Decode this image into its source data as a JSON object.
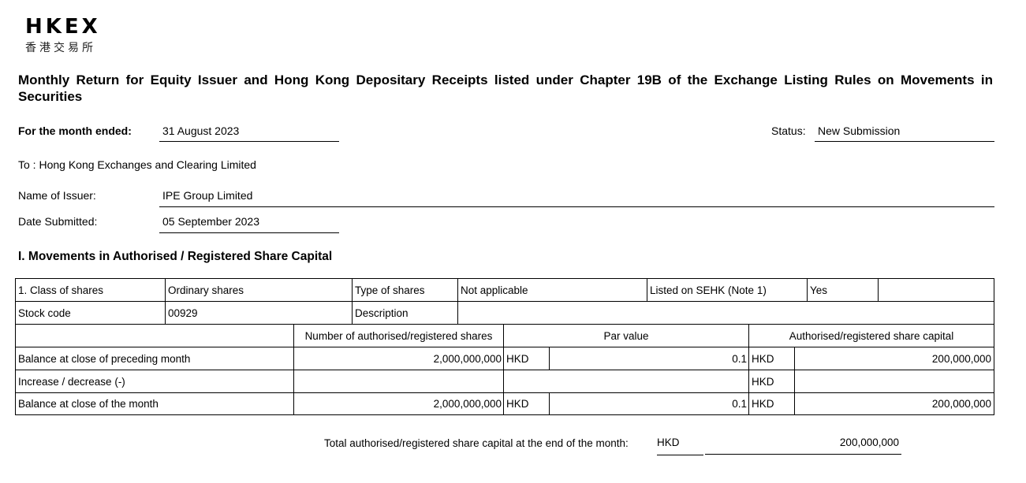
{
  "logo": {
    "en": "HKEX",
    "zh": "香港交易所"
  },
  "title": "Monthly Return for Equity Issuer and Hong Kong Depositary Receipts listed under Chapter 19B of the Exchange Listing Rules on Movements in Securities",
  "header": {
    "month_label": "For the month ended:",
    "month_value": "31 August 2023",
    "status_label": "Status:",
    "status_value": "New Submission",
    "to": "To : Hong Kong Exchanges and Clearing Limited",
    "issuer_label": "Name of Issuer:",
    "issuer_value": "IPE Group Limited",
    "date_label": "Date Submitted:",
    "date_value": "05 September 2023"
  },
  "section1": {
    "title": "I. Movements in Authorised / Registered Share Capital",
    "class_label": "1. Class of shares",
    "class_value": "Ordinary shares",
    "type_label": "Type of shares",
    "type_value": "Not applicable",
    "listed_label": "Listed on SEHK (Note 1)",
    "listed_value": "Yes",
    "stock_label": "Stock code",
    "stock_value": "00929",
    "desc_label": "Description",
    "desc_value": "",
    "col_shares": "Number of authorised/registered shares",
    "col_par": "Par value",
    "col_capital": "Authorised/registered share capital",
    "rows": [
      {
        "label": "Balance at close of preceding month",
        "shares": "2,000,000,000",
        "par_cur": "HKD",
        "par": "0.1",
        "cap_cur": "HKD",
        "capital": "200,000,000"
      },
      {
        "label": "Increase / decrease (-)",
        "shares": "",
        "par_cur": "",
        "par": "",
        "cap_cur": "HKD",
        "capital": ""
      },
      {
        "label": "Balance at close of the month",
        "shares": "2,000,000,000",
        "par_cur": "HKD",
        "par": "0.1",
        "cap_cur": "HKD",
        "capital": "200,000,000"
      }
    ],
    "total_label": "Total authorised/registered share capital at the end of the month:",
    "total_cur": "HKD",
    "total_value": "200,000,000"
  }
}
